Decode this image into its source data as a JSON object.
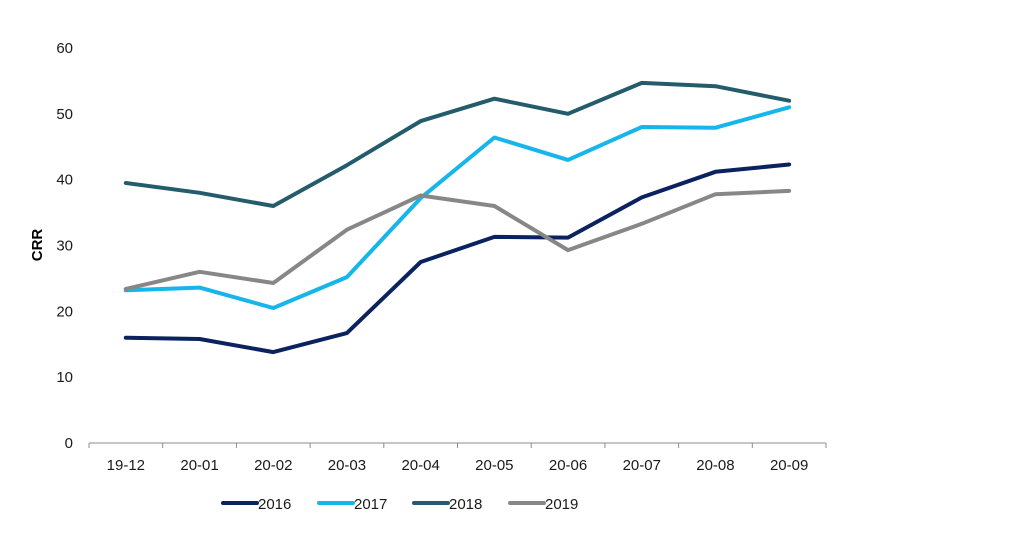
{
  "chart_data": {
    "type": "line",
    "title": "",
    "xlabel": "",
    "ylabel": "CRR",
    "ylim": [
      0,
      60
    ],
    "yticks": [
      0,
      10,
      20,
      30,
      40,
      50,
      60
    ],
    "grid": false,
    "legend_position": "bottom",
    "categories": [
      "19-12",
      "20-01",
      "20-02",
      "20-03",
      "20-04",
      "20-05",
      "20-06",
      "20-07",
      "20-08",
      "20-09"
    ],
    "series": [
      {
        "name": "2016",
        "color": "#0b2260",
        "values": [
          16.0,
          15.8,
          13.8,
          16.7,
          27.5,
          31.3,
          31.2,
          37.3,
          41.2,
          42.3
        ]
      },
      {
        "name": "2017",
        "color": "#16b5ea",
        "values": [
          23.2,
          23.6,
          20.5,
          25.2,
          37.2,
          46.4,
          43.0,
          48.0,
          47.9,
          51.0
        ]
      },
      {
        "name": "2018",
        "color": "#245c6c",
        "values": [
          39.5,
          38.0,
          36.0,
          42.2,
          48.9,
          52.3,
          50.0,
          54.7,
          54.2,
          52.0
        ]
      },
      {
        "name": "2019",
        "color": "#878787",
        "values": [
          23.4,
          26.0,
          24.3,
          32.4,
          37.6,
          36.0,
          29.3,
          33.3,
          37.8,
          38.3
        ]
      }
    ]
  }
}
